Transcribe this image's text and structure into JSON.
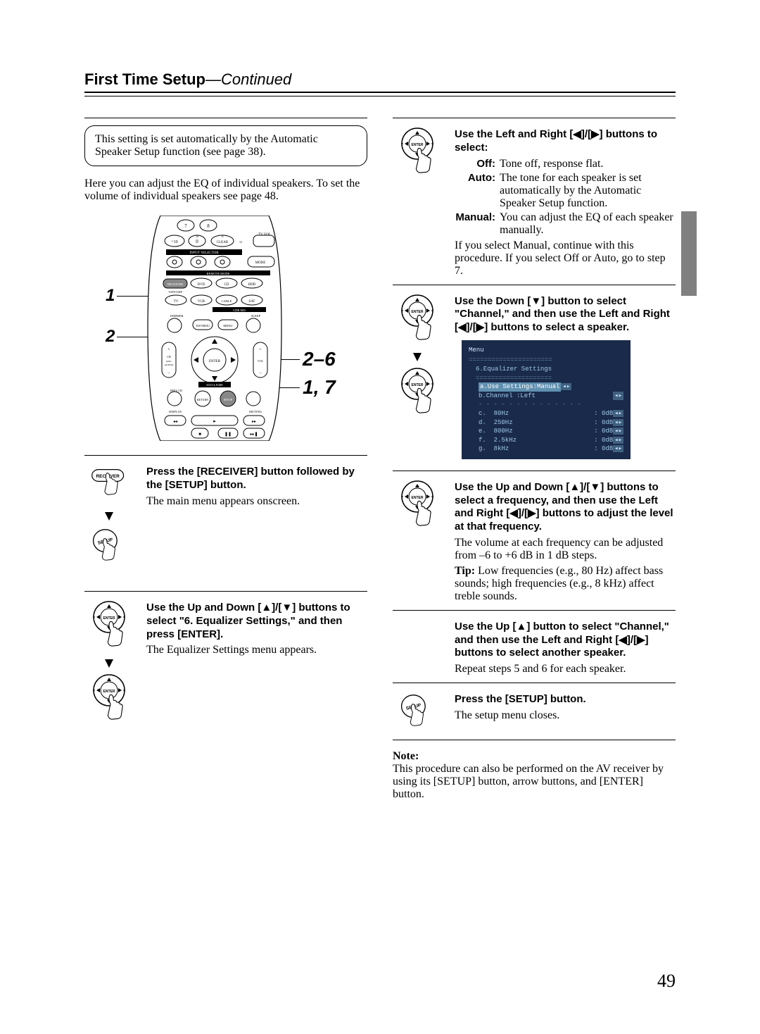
{
  "page_number": "49",
  "section_title": "First Time Setup",
  "section_continued": "—Continued",
  "callout_box": "This setting is set automatically by the Automatic Speaker Setup function (see page 38).",
  "intro_text": "Here you can adjust the EQ of individual speakers. To set the volume of individual speakers see page 48.",
  "remote_labels": {
    "num1": "1",
    "num2": "2",
    "right_range": "2–6",
    "right_steps": "1, 7",
    "tiny": {
      "tv_vol": "TV VOL",
      "input_selector": "INPUT SELECTOR",
      "macro": "MACRO",
      "mode": "MODE",
      "remote_mode": "REMOTE MODE",
      "receiver": "RECEIVER",
      "dvd": "DVD",
      "cd": "CD",
      "hdd": "HDD",
      "tape_amp": "TAPE/AMP",
      "tv": "TV",
      "vcr": "VCR",
      "cable": "CABLE",
      "sat": "SAT",
      "cdr_md": "CDR     MD",
      "dimmer": "DIMMER",
      "sleep": "SLEEP",
      "top_menu": "TOP MENU",
      "menu": "MENU",
      "enter": "ENTER",
      "ch": "CH",
      "disc_album": "DISC\nALBUM",
      "vol": "VOL",
      "exit_jump": "EXIT ▾ JUMP",
      "prev_ch": "PREV\nCH",
      "return": "RETURN",
      "setup": "SETUP",
      "display": "DISPLAY",
      "muting": "MUTING",
      "plus10": "+10",
      "clear": "CLEAR"
    }
  },
  "col1_steps": [
    {
      "icons": [
        "receiver-btn",
        "arrow",
        "setup-btn-hand"
      ],
      "bold": "Press the [RECEIVER] button followed by the [SETUP] button.",
      "body": "The main menu appears onscreen."
    },
    {
      "icons": [
        "enter-hand",
        "arrow",
        "enter-hand"
      ],
      "bold": "Use the Up and Down [▲]/[▼] buttons to select \"6. Equalizer Settings,\" and then press [ENTER].",
      "body": "The Equalizer Settings menu appears."
    }
  ],
  "col2_steps": [
    {
      "icons": [
        "enter-hand"
      ],
      "bold": "Use the Left and Right [◀]/[▶] buttons to select:",
      "options": [
        {
          "label": "Off:",
          "text": "Tone off, response flat."
        },
        {
          "label": "Auto:",
          "text": "The tone for each speaker is set automatically by the Automatic Speaker Setup function."
        },
        {
          "label": "Manual:",
          "text": "You can adjust the EQ of each speaker manually."
        }
      ],
      "body": "If you select Manual, continue with this procedure. If you select Off or Auto, go to step 7."
    },
    {
      "icons": [
        "enter-hand",
        "arrow",
        "enter-hand"
      ],
      "bold": "Use the Down [▼] button to select \"Channel,\" and then use the Left and Right [◀]/[▶] buttons to select a speaker.",
      "menu": true
    },
    {
      "icons": [
        "enter-hand"
      ],
      "bold": "Use the Up and Down [▲]/[▼] buttons to select a frequency, and then use the Left and Right [◀]/[▶] buttons to adjust the level at that frequency.",
      "body": "The volume at each frequency can be adjusted from –6 to +6 dB in 1 dB steps.",
      "tip": "Low frequencies (e.g., 80 Hz) affect bass sounds; high frequencies (e.g., 8 kHz) affect treble sounds.",
      "tip_label": "Tip:"
    },
    {
      "icons": [],
      "bold": "Use the Up [▲] button to select \"Channel,\" and then use the Left and Right [◀]/[▶] buttons to select another speaker.",
      "body": "Repeat steps 5 and 6 for each speaker."
    },
    {
      "icons": [
        "setup-btn-hand"
      ],
      "bold": "Press the [SETUP] button.",
      "body": "The setup menu closes."
    }
  ],
  "menu_screenshot": {
    "title": "Menu",
    "heading": "6.Equalizer Settings",
    "row_a_label": "a.Use Settings:",
    "row_a_value": "Manual",
    "row_b_label": "b.Channel  :Left",
    "freq_rows": [
      {
        "k": "c.",
        "f": "80Hz",
        "v": "0dB"
      },
      {
        "k": "d.",
        "f": "250Hz",
        "v": "0dB"
      },
      {
        "k": "e.",
        "f": "800Hz",
        "v": "0dB"
      },
      {
        "k": "f.",
        "f": "2.5kHz",
        "v": "0dB"
      },
      {
        "k": "g.",
        "f": "8kHz",
        "v": "0dB"
      }
    ],
    "arrow_glyph": "◂▸"
  },
  "note_label": "Note:",
  "note_text": "This procedure can also be performed on the AV receiver by using its [SETUP] button, arrow buttons, and [ENTER] button.",
  "colors": {
    "text": "#000000",
    "screenshot_bg": "#1a2a4a",
    "screenshot_text": "#a0c8e8",
    "side_tab": "#808080"
  }
}
